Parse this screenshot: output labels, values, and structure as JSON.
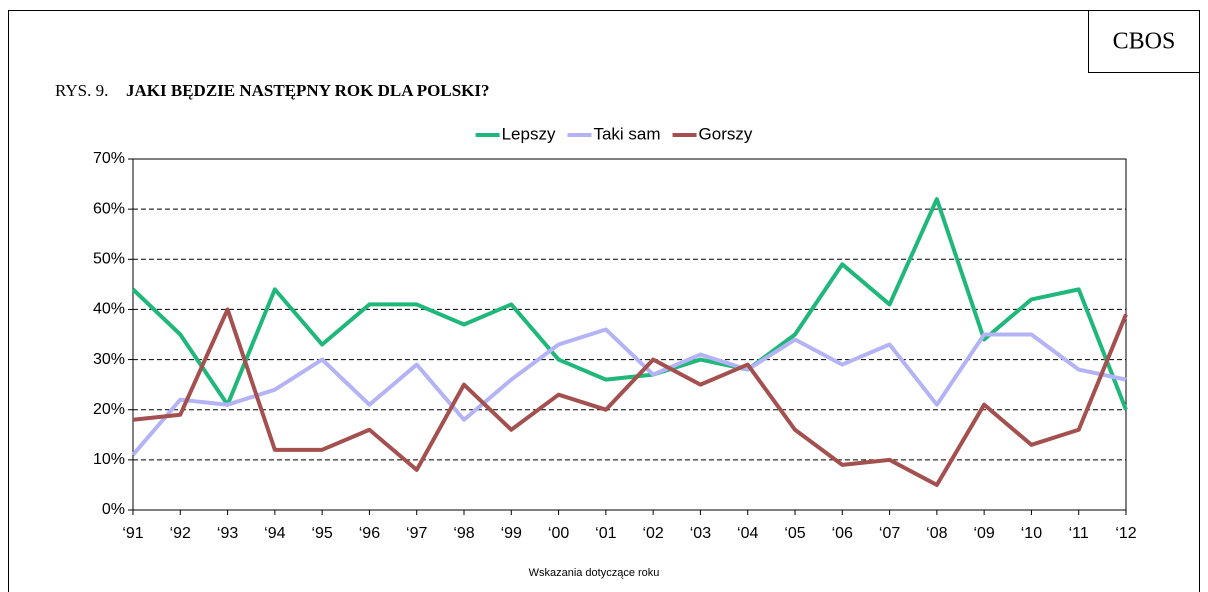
{
  "chart_data": {
    "type": "line",
    "badge": "CBOS",
    "figure_label": "RYS. 9.",
    "title": "JAKI BĘDZIE NASTĘPNY ROK DLA POLSKI?",
    "x_label": "Wskazania dotyczące roku",
    "categories": [
      "‘91",
      "‘92",
      "‘93",
      "‘94",
      "‘95",
      "‘96",
      "‘97",
      "‘98",
      "‘99",
      "‘00",
      "‘01",
      "‘02",
      "‘03",
      "‘04",
      "‘05",
      "‘06",
      "‘07",
      "‘08",
      "‘09",
      "‘10",
      "‘11",
      "‘12"
    ],
    "series": [
      {
        "name": "Lepszy",
        "color": "#20b87a",
        "values": [
          44,
          35,
          21,
          44,
          33,
          41,
          41,
          37,
          41,
          30,
          26,
          27,
          30,
          28,
          35,
          49,
          41,
          62,
          34,
          42,
          44,
          20
        ]
      },
      {
        "name": "Taki sam",
        "color": "#b3b3f5",
        "values": [
          11,
          22,
          21,
          24,
          30,
          21,
          29,
          18,
          26,
          33,
          36,
          27,
          31,
          28,
          34,
          29,
          33,
          21,
          35,
          35,
          28,
          26
        ]
      },
      {
        "name": "Gorszy",
        "color": "#a3504f",
        "values": [
          18,
          19,
          40,
          12,
          12,
          16,
          8,
          25,
          16,
          23,
          20,
          30,
          25,
          29,
          16,
          9,
          10,
          5,
          21,
          13,
          16,
          39
        ]
      }
    ],
    "ylim": [
      0,
      70
    ],
    "yticks": [
      {
        "value": 0,
        "label": "0%"
      },
      {
        "value": 10,
        "label": "10%"
      },
      {
        "value": 20,
        "label": "20%"
      },
      {
        "value": 30,
        "label": "30%"
      },
      {
        "value": 40,
        "label": "40%"
      },
      {
        "value": 50,
        "label": "50%"
      },
      {
        "value": 60,
        "label": "60%"
      },
      {
        "value": 70,
        "label": "70%"
      }
    ],
    "grid": true,
    "legend": "top"
  }
}
